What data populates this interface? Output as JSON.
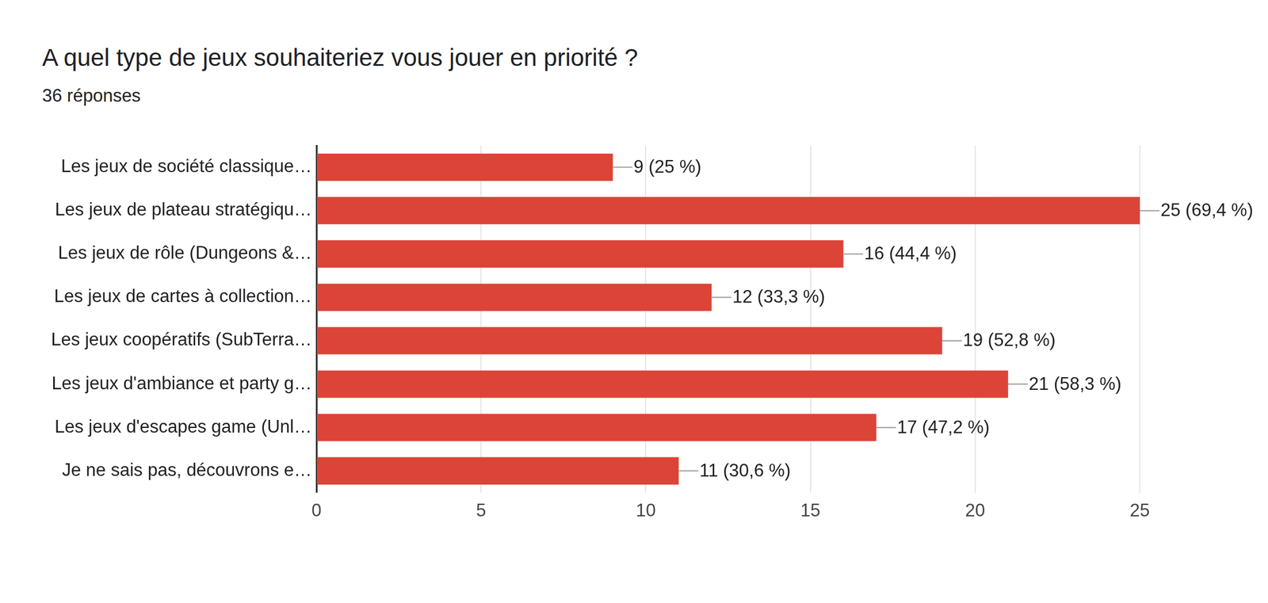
{
  "chart_data": {
    "type": "bar",
    "orientation": "horizontal",
    "title": "A quel type de jeux souhaiteriez vous jouer en priorité ?",
    "subtitle": "36 réponses",
    "categories": [
      "Les jeux de société classique…",
      "Les jeux de plateau stratégiqu…",
      "Les jeux de rôle (Dungeons &…",
      "Les jeux de cartes à collection…",
      "Les jeux coopératifs (SubTerra…",
      "Les jeux d'ambiance et party g…",
      "Les jeux d'escapes game (Unl…",
      "Je ne sais pas, découvrons e…"
    ],
    "values": [
      9,
      25,
      16,
      12,
      19,
      21,
      17,
      11
    ],
    "value_labels": [
      "9 (25 %)",
      "25 (69,4 %)",
      "16 (44,4 %)",
      "12 (33,3 %)",
      "19 (52,8 %)",
      "21 (58,3 %)",
      "17 (47,2 %)",
      "11 (30,6 %)"
    ],
    "data_labels": true,
    "color": "#db4437",
    "xlim": [
      0,
      25
    ],
    "xticks": [
      0,
      5,
      10,
      15,
      20,
      25
    ],
    "grid": true
  }
}
